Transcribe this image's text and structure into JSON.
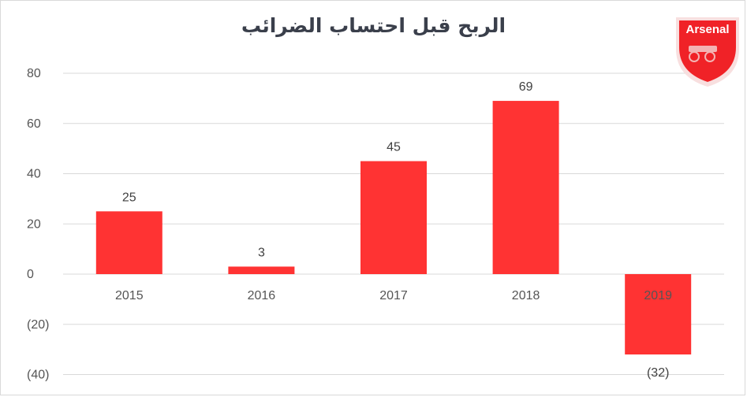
{
  "chart_data": {
    "type": "bar",
    "title": "الربح قبل احتساب الضرائب",
    "categories": [
      "2015",
      "2016",
      "2017",
      "2018",
      "2019"
    ],
    "values": [
      25,
      3,
      45,
      69,
      -32
    ],
    "data_labels": [
      "25",
      "3",
      "45",
      "69",
      "(32)"
    ],
    "yticks": [
      80,
      60,
      40,
      20,
      0,
      -20,
      -40
    ],
    "ytick_labels": [
      "80",
      "60",
      "40",
      "20",
      "0",
      "(20)",
      "(40)"
    ],
    "ylim": [
      -40,
      80
    ],
    "grid": true,
    "bar_color": "#ff3333",
    "xlabel": "",
    "ylabel": ""
  },
  "logo": {
    "text": "Arsenal",
    "color": "#ef0107"
  }
}
